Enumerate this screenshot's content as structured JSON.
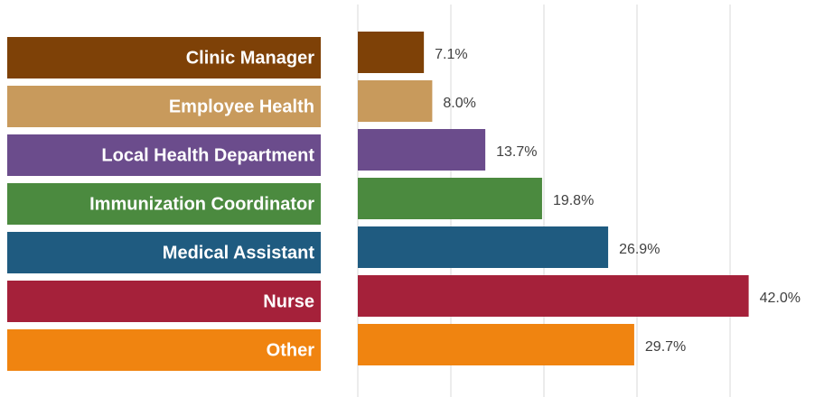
{
  "chart_data": {
    "type": "bar",
    "categories": [
      "Clinic Manager",
      "Employee Health",
      "Local Health Department",
      "Immunization Coordinator",
      "Medical Assistant",
      "Nurse",
      "Other"
    ],
    "values": [
      7.1,
      8.0,
      13.7,
      19.8,
      26.9,
      42.0,
      29.7
    ],
    "value_labels": [
      "7.1%",
      "8.0%",
      "13.7%",
      "19.8%",
      "26.9%",
      "42.0%",
      "29.7%"
    ],
    "colors": [
      "#7e4107",
      "#c89a5c",
      "#6b4c8c",
      "#4b8a3f",
      "#1f5b80",
      "#a5213a",
      "#f08410"
    ],
    "xlim": [
      0,
      40
    ],
    "xticks": [
      0,
      10,
      20,
      30,
      40
    ],
    "grid": true
  }
}
